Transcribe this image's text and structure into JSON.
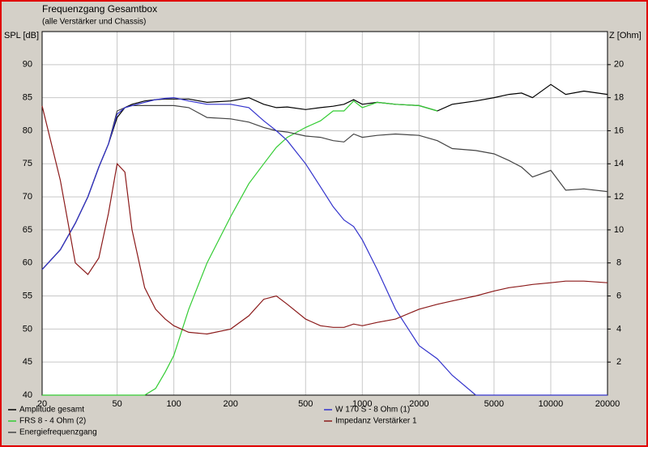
{
  "chart_data": {
    "type": "line",
    "title": "Frequenzgang Gesamtbox",
    "subtitle": "(alle Verstärker und Chassis)",
    "ylabel": "SPL [dB]",
    "y2label": "Z [Ohm]",
    "xscale": "log",
    "grid": true,
    "xlim": [
      20,
      20000
    ],
    "xticks": [
      20,
      50,
      100,
      200,
      500,
      1000,
      2000,
      5000,
      10000,
      20000
    ],
    "ylim": [
      40,
      95
    ],
    "yticks": [
      40,
      45,
      50,
      55,
      60,
      65,
      70,
      75,
      80,
      85,
      90
    ],
    "y2lim": [
      0,
      22
    ],
    "y2ticks": [
      2,
      4,
      6,
      8,
      10,
      12,
      14,
      16,
      18,
      20
    ],
    "x": [
      20,
      25,
      30,
      35,
      40,
      45,
      50,
      55,
      60,
      70,
      80,
      90,
      100,
      120,
      150,
      200,
      250,
      300,
      350,
      400,
      500,
      600,
      700,
      800,
      900,
      1000,
      1200,
      1500,
      2000,
      2500,
      3000,
      4000,
      5000,
      6000,
      7000,
      8000,
      10000,
      12000,
      15000,
      20000
    ],
    "series": [
      {
        "name": "Amplitude gesamt",
        "color": "#000000",
        "values": [
          59,
          62,
          66,
          70,
          74.5,
          78,
          82,
          83.5,
          84,
          84.5,
          84.7,
          84.8,
          84.8,
          84.8,
          84.3,
          84.5,
          85,
          84,
          83.5,
          83.6,
          83.2,
          83.5,
          83.7,
          84,
          84.7,
          84,
          84.3,
          84,
          83.8,
          83,
          84,
          84.5,
          85,
          85.5,
          85.7,
          85,
          87,
          85.5,
          86,
          85.5
        ]
      },
      {
        "name": "FRS 8 - 4 Ohm (2)",
        "color": "#33cc33",
        "values": [
          40,
          40,
          40,
          40,
          40,
          40,
          40,
          40,
          40,
          40,
          41,
          43.5,
          46,
          53,
          60,
          67,
          72,
          75,
          77.5,
          79,
          80.5,
          81.5,
          83,
          83,
          84.5,
          83.5,
          84.3,
          84,
          83.8,
          83,
          null,
          null,
          null,
          null,
          null,
          null,
          null,
          null,
          null,
          null
        ]
      },
      {
        "name": "Energiefrequenzgang",
        "color": "#444444",
        "values": [
          59,
          62,
          66,
          70,
          74.5,
          78,
          83,
          83.5,
          83.8,
          83.8,
          83.8,
          83.8,
          83.8,
          83.5,
          82,
          81.8,
          81.3,
          80.5,
          80,
          79.8,
          79.2,
          79,
          78.5,
          78.3,
          79.5,
          79,
          79.3,
          79.5,
          79.3,
          78.5,
          77.3,
          77,
          76.5,
          75.5,
          74.5,
          73,
          74,
          71,
          71.2,
          70.8
        ]
      },
      {
        "name": "W 170 S - 8 Ohm (1)",
        "color": "#3333cc",
        "values": [
          59,
          62,
          66,
          70,
          74.5,
          78,
          82.5,
          83.5,
          83.8,
          84.3,
          84.7,
          84.9,
          85,
          84.5,
          84,
          84,
          83.5,
          81.5,
          80,
          78.5,
          75,
          71.5,
          68.5,
          66.5,
          65.5,
          63.5,
          59,
          53,
          47.5,
          45.5,
          43,
          40,
          40,
          40,
          40,
          40,
          40,
          40,
          40,
          40
        ]
      },
      {
        "name": "Impedanz Verstärker 1",
        "color": "#8b1a1a",
        "axis": "y2",
        "values": [
          17.5,
          13,
          8,
          7.3,
          8.3,
          11,
          14,
          13.5,
          10,
          6.5,
          5.2,
          4.6,
          4.2,
          3.8,
          3.7,
          4,
          4.8,
          5.8,
          6,
          5.5,
          4.6,
          4.2,
          4.1,
          4.1,
          4.3,
          4.2,
          4.4,
          4.6,
          5.2,
          5.5,
          5.7,
          6,
          6.3,
          6.5,
          6.6,
          6.7,
          6.8,
          6.9,
          6.9,
          6.8
        ]
      }
    ]
  }
}
